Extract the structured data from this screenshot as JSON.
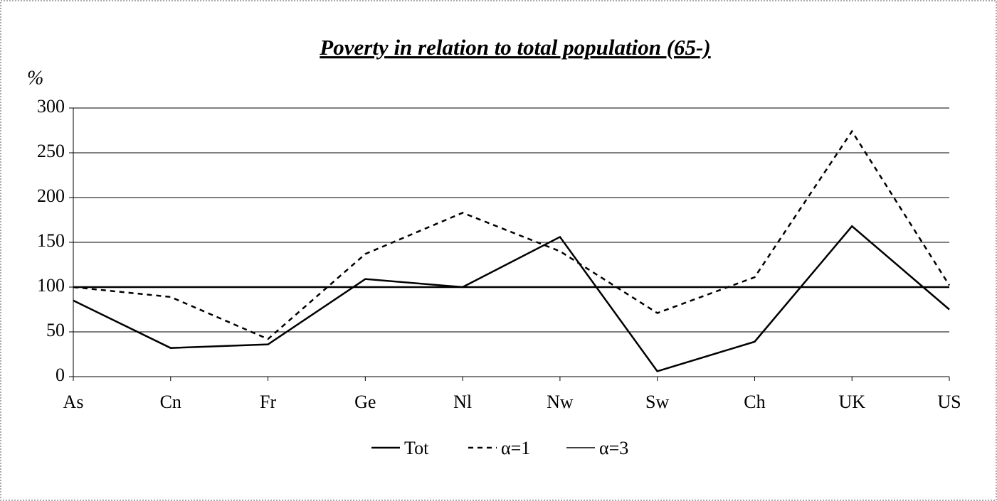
{
  "chart_data": {
    "type": "line",
    "title": "Poverty in relation to total population (65-)",
    "y_label": "%",
    "categories": [
      "As",
      "Cn",
      "Fr",
      "Ge",
      "Nl",
      "Nw",
      "Sw",
      "Ch",
      "UK",
      "US"
    ],
    "series": [
      {
        "name": "Tot",
        "color": "#000000",
        "line_style": "solid",
        "values": [
          85,
          32,
          36,
          109,
          100,
          156,
          6,
          39,
          168,
          75
        ]
      },
      {
        "name": "α=1",
        "color": "#000000",
        "line_style": "dashed",
        "values": [
          100,
          89,
          42,
          137,
          183,
          140,
          71,
          111,
          274,
          102
        ]
      },
      {
        "name": "α=3",
        "color": "#000000",
        "line_style": "solid",
        "values": [
          85,
          32,
          36,
          109,
          100,
          156,
          6,
          39,
          168,
          75
        ]
      }
    ],
    "ylim": [
      0,
      300
    ],
    "yticks": [
      0,
      50,
      100,
      150,
      200,
      250,
      300
    ],
    "grid": true,
    "reference_line": 100,
    "legend": "bottom"
  }
}
